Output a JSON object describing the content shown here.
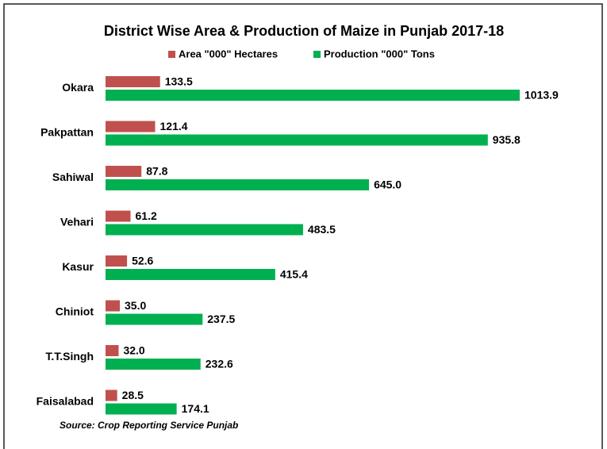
{
  "chart_data": {
    "type": "hbar",
    "title": "District Wise Area & Production of Maize in Punjab 2017-18",
    "categories": [
      "Okara",
      "Pakpattan",
      "Sahiwal",
      "Vehari",
      "Kasur",
      "Chiniot",
      "T.T.Singh",
      "Faisalabad"
    ],
    "series": [
      {
        "name": "Area \"000\" Hectares",
        "color": "#c0504d",
        "values": [
          133.5,
          121.4,
          87.8,
          61.2,
          52.6,
          35,
          32,
          28.5
        ],
        "value_labels": [
          "133.5",
          "121.4",
          "87.8",
          "61.2",
          "52.6",
          "35.0",
          "32.0",
          "28.5"
        ]
      },
      {
        "name": "Production \"000\" Tons",
        "color": "#00b050",
        "values": [
          1013.9,
          935.8,
          645,
          483.5,
          415.4,
          237.5,
          232.6,
          174.1
        ],
        "value_labels": [
          "1013.9",
          "935.8",
          "645.0",
          "483.5",
          "415.4",
          "237.5",
          "232.6",
          "174.1"
        ]
      }
    ],
    "legend": "top",
    "source": "Source: Crop Reporting Service Punjab"
  }
}
